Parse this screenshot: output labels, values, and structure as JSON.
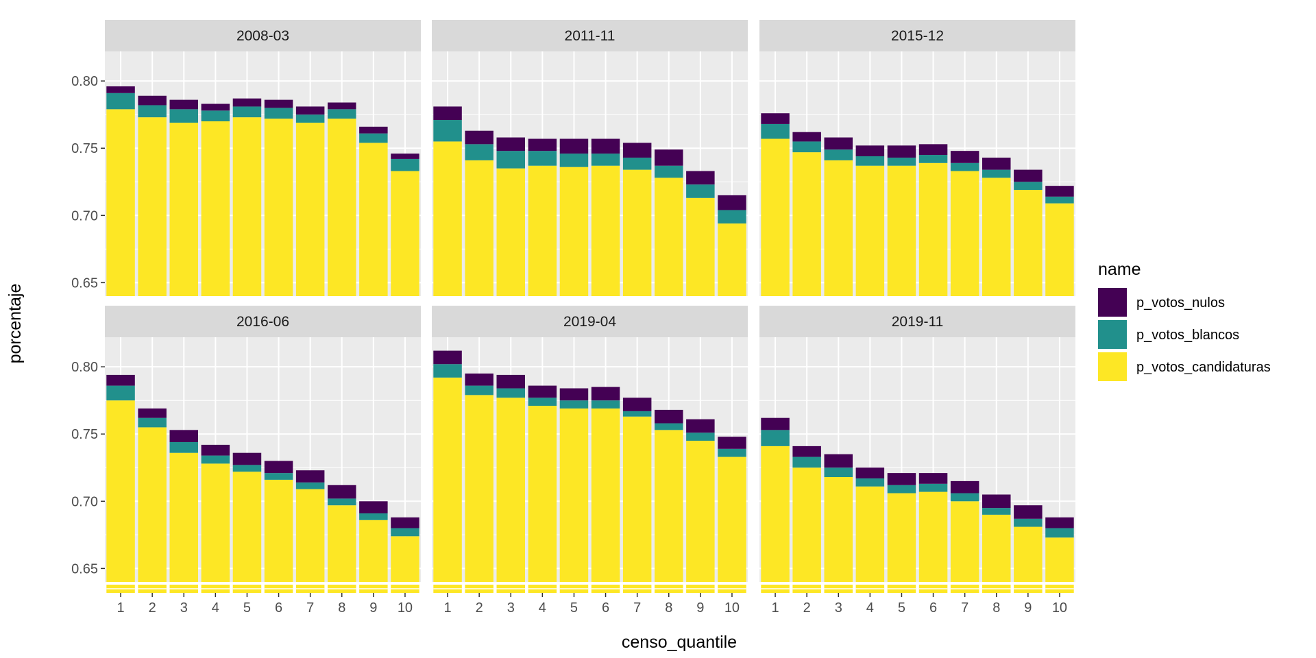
{
  "chart_data": {
    "type": "bar",
    "stacked": true,
    "faceted": true,
    "x_label": "censo_quantile",
    "y_label": "porcentaje",
    "y_ticks": [
      0.65,
      0.7,
      0.75,
      0.8
    ],
    "y_tick_labels": [
      "0.65",
      "0.70",
      "0.75",
      "0.80"
    ],
    "ylim": [
      0.64,
      0.822
    ],
    "x_ticks": [
      "1",
      "2",
      "3",
      "4",
      "5",
      "6",
      "7",
      "8",
      "9",
      "10"
    ],
    "grid": true,
    "legend": {
      "title": "name",
      "position": "right",
      "items": [
        {
          "label": "p_votos_nulos",
          "color": "#440154"
        },
        {
          "label": "p_votos_blancos",
          "color": "#21908C"
        },
        {
          "label": "p_votos_candidaturas",
          "color": "#FDE725"
        }
      ]
    },
    "colors": {
      "p_votos_candidaturas": "#FDE725",
      "p_votos_blancos": "#21908C",
      "p_votos_nulos": "#440154",
      "panel_background": "#EBEBEB",
      "strip_background": "#D9D9D9",
      "grid_line": "#FFFFFF"
    },
    "panels": [
      {
        "title": "2008-03",
        "p_votos_candidaturas": [
          0.779,
          0.773,
          0.769,
          0.77,
          0.773,
          0.772,
          0.769,
          0.772,
          0.754,
          0.733
        ],
        "p_votos_blancos": [
          0.012,
          0.009,
          0.01,
          0.008,
          0.008,
          0.008,
          0.006,
          0.007,
          0.007,
          0.009
        ],
        "p_votos_nulos": [
          0.005,
          0.007,
          0.007,
          0.005,
          0.006,
          0.006,
          0.006,
          0.005,
          0.005,
          0.004
        ]
      },
      {
        "title": "2011-11",
        "p_votos_candidaturas": [
          0.755,
          0.741,
          0.735,
          0.737,
          0.736,
          0.737,
          0.734,
          0.728,
          0.713,
          0.694
        ],
        "p_votos_blancos": [
          0.016,
          0.012,
          0.013,
          0.011,
          0.01,
          0.009,
          0.009,
          0.009,
          0.01,
          0.01
        ],
        "p_votos_nulos": [
          0.01,
          0.01,
          0.01,
          0.009,
          0.011,
          0.011,
          0.011,
          0.012,
          0.01,
          0.011
        ]
      },
      {
        "title": "2015-12",
        "p_votos_candidaturas": [
          0.757,
          0.747,
          0.741,
          0.737,
          0.737,
          0.739,
          0.733,
          0.728,
          0.719,
          0.709
        ],
        "p_votos_blancos": [
          0.011,
          0.008,
          0.008,
          0.007,
          0.006,
          0.006,
          0.006,
          0.006,
          0.006,
          0.005
        ],
        "p_votos_nulos": [
          0.008,
          0.007,
          0.009,
          0.008,
          0.009,
          0.008,
          0.009,
          0.009,
          0.009,
          0.008
        ]
      },
      {
        "title": "2016-06",
        "p_votos_candidaturas": [
          0.775,
          0.755,
          0.736,
          0.728,
          0.722,
          0.716,
          0.709,
          0.697,
          0.686,
          0.674
        ],
        "p_votos_blancos": [
          0.011,
          0.007,
          0.008,
          0.006,
          0.005,
          0.005,
          0.005,
          0.005,
          0.005,
          0.006
        ],
        "p_votos_nulos": [
          0.008,
          0.007,
          0.009,
          0.008,
          0.009,
          0.009,
          0.009,
          0.01,
          0.009,
          0.008
        ]
      },
      {
        "title": "2019-04",
        "p_votos_candidaturas": [
          0.792,
          0.779,
          0.777,
          0.771,
          0.769,
          0.769,
          0.763,
          0.753,
          0.745,
          0.733
        ],
        "p_votos_blancos": [
          0.01,
          0.007,
          0.007,
          0.006,
          0.006,
          0.006,
          0.004,
          0.005,
          0.006,
          0.006
        ],
        "p_votos_nulos": [
          0.01,
          0.009,
          0.01,
          0.009,
          0.009,
          0.01,
          0.01,
          0.01,
          0.01,
          0.009
        ]
      },
      {
        "title": "2019-11",
        "p_votos_candidaturas": [
          0.741,
          0.725,
          0.718,
          0.711,
          0.706,
          0.707,
          0.7,
          0.69,
          0.681,
          0.673
        ],
        "p_votos_blancos": [
          0.012,
          0.008,
          0.007,
          0.006,
          0.006,
          0.006,
          0.006,
          0.005,
          0.006,
          0.007
        ],
        "p_votos_nulos": [
          0.009,
          0.008,
          0.01,
          0.008,
          0.009,
          0.008,
          0.009,
          0.01,
          0.01,
          0.008
        ]
      }
    ]
  }
}
